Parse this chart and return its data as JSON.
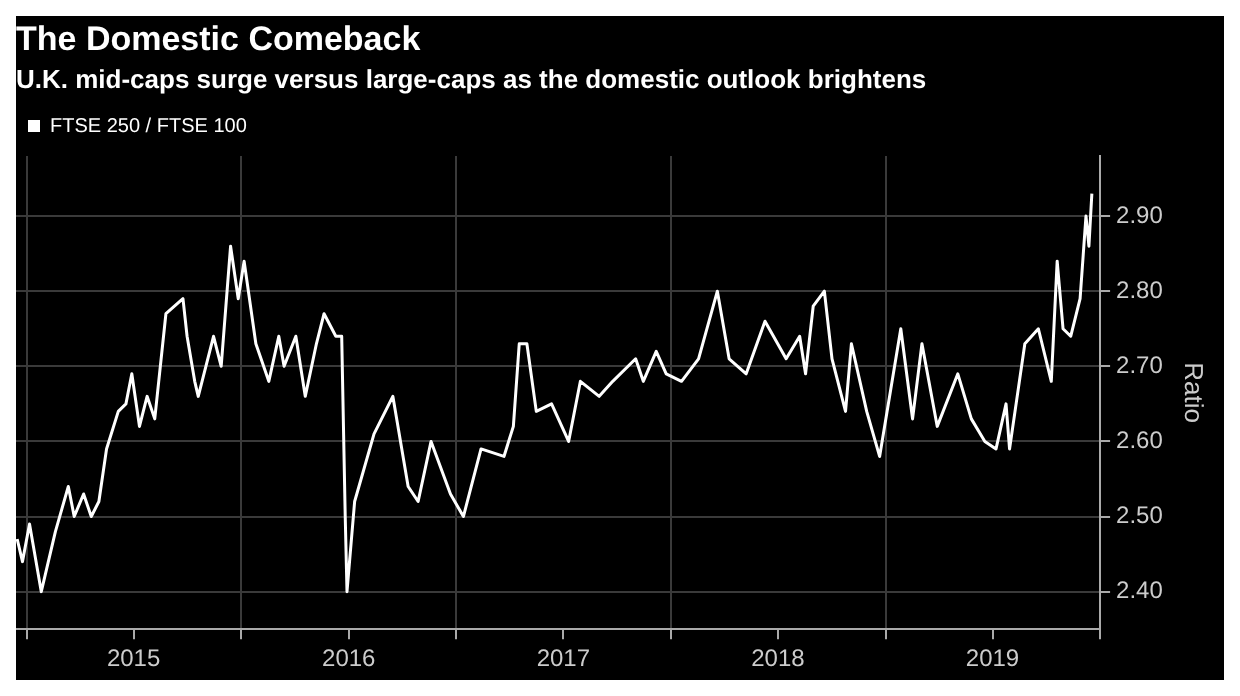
{
  "chart_data": {
    "type": "line",
    "title": "The Domestic Comeback",
    "subtitle": "U.K. mid-caps surge versus large-caps as the domestic outlook brightens",
    "ylabel": "Ratio",
    "x": [
      "2014-12-16",
      "2014-12-25",
      "2015-01-06",
      "2015-01-26",
      "2015-02-19",
      "2015-03-13",
      "2015-03-23",
      "2015-04-08",
      "2015-04-21",
      "2015-05-04",
      "2015-05-17",
      "2015-06-06",
      "2015-06-19",
      "2015-06-29",
      "2015-07-12",
      "2015-07-25",
      "2015-08-07",
      "2015-08-26",
      "2015-09-24",
      "2015-10-01",
      "2015-10-14",
      "2015-10-20",
      "2015-11-15",
      "2015-11-28",
      "2015-12-14",
      "2015-12-27",
      "2016-01-06",
      "2016-01-26",
      "2016-02-17",
      "2016-03-05",
      "2016-03-14",
      "2016-04-03",
      "2016-04-19",
      "2016-05-08",
      "2016-05-21",
      "2016-06-10",
      "2016-06-20",
      "2016-06-26",
      "2016-06-29",
      "2016-07-12",
      "2016-08-14",
      "2016-09-15",
      "2016-10-11",
      "2016-10-28",
      "2016-11-19",
      "2016-12-22",
      "2017-01-13",
      "2017-02-12",
      "2017-03-23",
      "2017-04-08",
      "2017-04-18",
      "2017-05-01",
      "2017-05-17",
      "2017-06-12",
      "2017-07-11",
      "2017-07-31",
      "2017-09-01",
      "2017-09-24",
      "2017-11-02",
      "2017-11-15",
      "2017-12-07",
      "2017-12-24",
      "2018-01-19",
      "2018-02-17",
      "2018-03-21",
      "2018-04-10",
      "2018-05-09",
      "2018-06-10",
      "2018-07-16",
      "2018-08-08",
      "2018-08-18",
      "2018-08-31",
      "2018-09-19",
      "2018-10-02",
      "2018-10-25",
      "2018-11-04",
      "2018-11-30",
      "2018-12-22",
      "2019-01-27",
      "2019-02-16",
      "2019-03-04",
      "2019-03-30",
      "2019-05-04",
      "2019-05-27",
      "2019-06-19",
      "2019-07-08",
      "2019-07-25",
      "2019-07-31",
      "2019-08-26",
      "2019-09-18",
      "2019-10-10",
      "2019-10-20",
      "2019-10-30",
      "2019-11-12",
      "2019-11-28",
      "2019-12-08",
      "2019-12-13",
      "2019-12-18"
    ],
    "series": [
      {
        "name": "FTSE 250 / FTSE 100",
        "color": "#ffffff",
        "values": [
          2.47,
          2.44,
          2.49,
          2.4,
          2.48,
          2.54,
          2.5,
          2.53,
          2.5,
          2.52,
          2.59,
          2.64,
          2.65,
          2.69,
          2.62,
          2.66,
          2.63,
          2.77,
          2.79,
          2.74,
          2.68,
          2.66,
          2.74,
          2.7,
          2.86,
          2.79,
          2.84,
          2.73,
          2.68,
          2.74,
          2.7,
          2.74,
          2.66,
          2.73,
          2.77,
          2.74,
          2.74,
          2.5,
          2.4,
          2.52,
          2.61,
          2.66,
          2.54,
          2.52,
          2.6,
          2.53,
          2.5,
          2.59,
          2.58,
          2.62,
          2.73,
          2.73,
          2.64,
          2.65,
          2.6,
          2.68,
          2.66,
          2.68,
          2.71,
          2.68,
          2.72,
          2.69,
          2.68,
          2.71,
          2.8,
          2.71,
          2.69,
          2.76,
          2.71,
          2.74,
          2.69,
          2.78,
          2.8,
          2.71,
          2.64,
          2.73,
          2.64,
          2.58,
          2.75,
          2.63,
          2.73,
          2.62,
          2.69,
          2.63,
          2.6,
          2.59,
          2.65,
          2.59,
          2.73,
          2.75,
          2.68,
          2.84,
          2.75,
          2.74,
          2.79,
          2.9,
          2.86,
          2.93
        ]
      }
    ],
    "xlim": [
      "2014-12-14",
      "2020-01-01"
    ],
    "xticks": [
      {
        "value": "2015-01-01",
        "label": null
      },
      {
        "value": "2015-07-02",
        "label": "2015"
      },
      {
        "value": "2016-01-01",
        "label": null
      },
      {
        "value": "2016-07-02",
        "label": "2016"
      },
      {
        "value": "2017-01-01",
        "label": null
      },
      {
        "value": "2017-07-02",
        "label": "2017"
      },
      {
        "value": "2018-01-01",
        "label": null
      },
      {
        "value": "2018-07-02",
        "label": "2018"
      },
      {
        "value": "2019-01-01",
        "label": null
      },
      {
        "value": "2019-07-02",
        "label": "2019"
      },
      {
        "value": "2020-01-01",
        "label": null
      }
    ],
    "ylim": [
      2.35,
      2.98
    ],
    "yticks": [
      {
        "value": 2.4,
        "label": "2.40"
      },
      {
        "value": 2.5,
        "label": "2.50"
      },
      {
        "value": 2.6,
        "label": "2.60"
      },
      {
        "value": 2.7,
        "label": "2.70"
      },
      {
        "value": 2.8,
        "label": "2.80"
      },
      {
        "value": 2.9,
        "label": "2.90"
      }
    ],
    "grid": true,
    "legend": "top left",
    "marker": "none",
    "line_style": "solid"
  }
}
